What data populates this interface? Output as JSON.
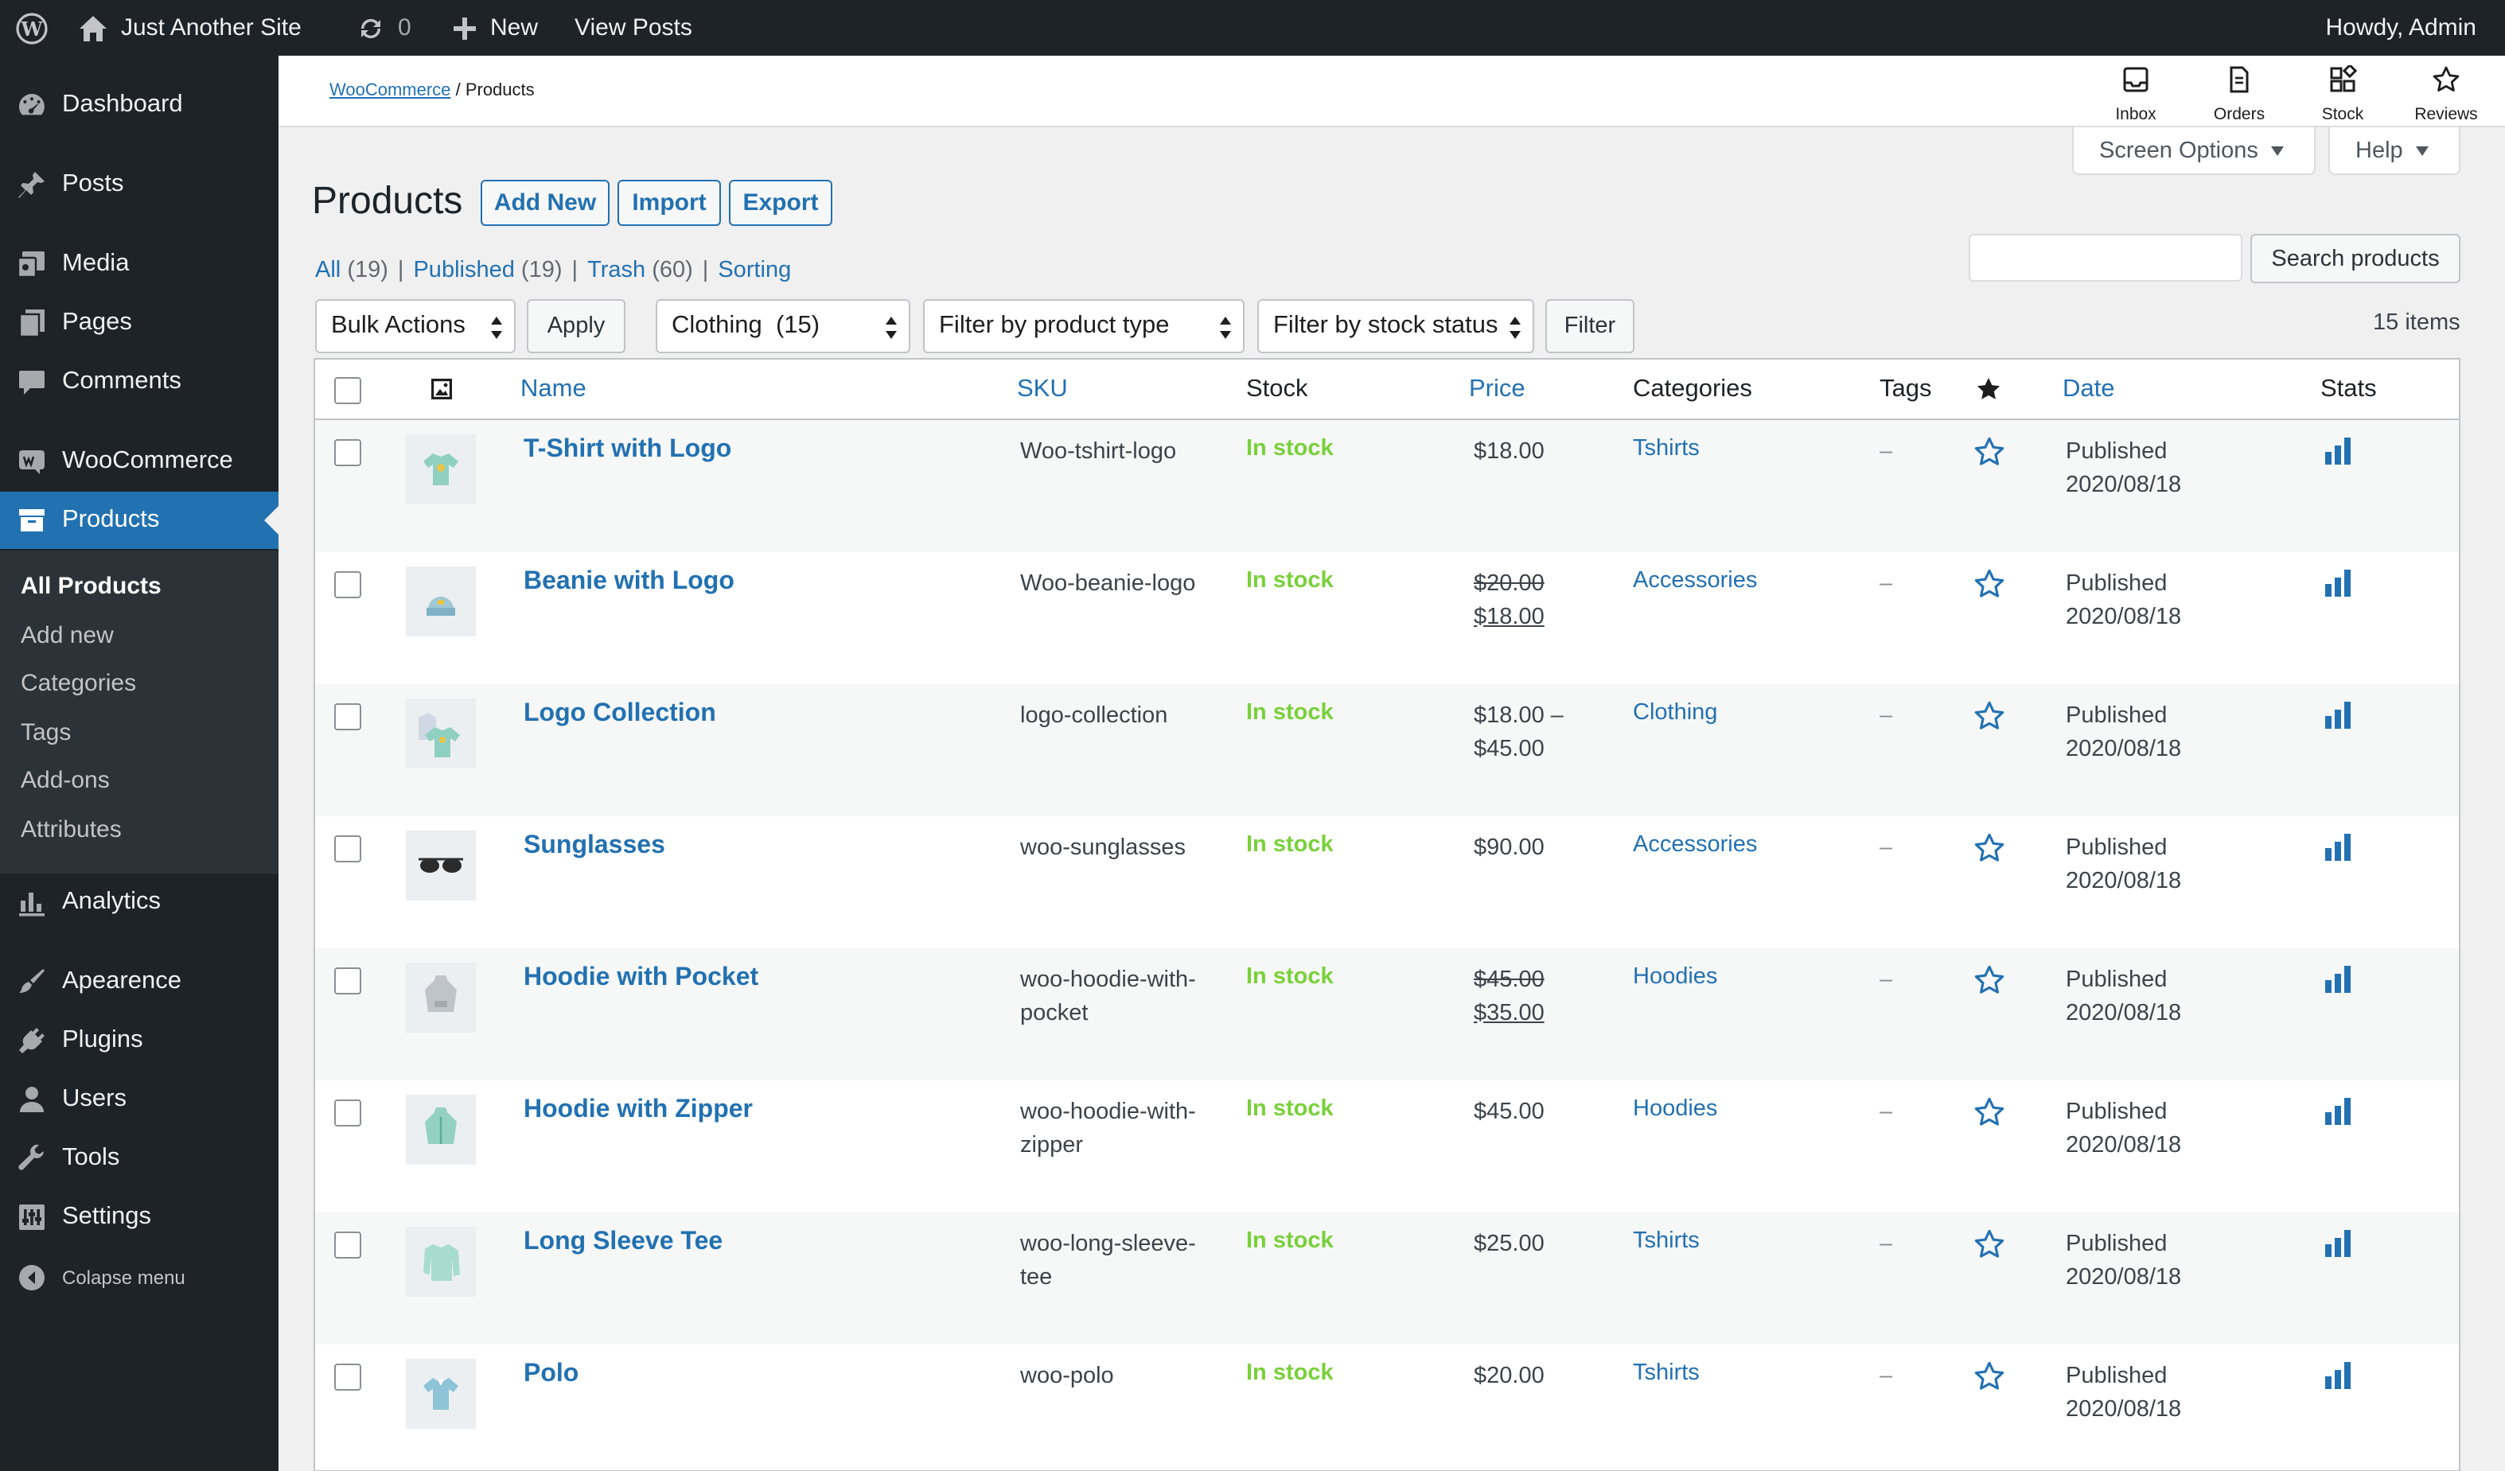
{
  "admin_bar": {
    "site_name": "Just Another Site",
    "updates_count": "0",
    "new_label": "New",
    "view_posts_label": "View Posts",
    "greeting": "Howdy, Admin"
  },
  "sidebar": {
    "items": [
      {
        "label": "Dashboard",
        "icon": "dashboard-icon"
      },
      {
        "label": "Posts",
        "icon": "pin-icon"
      },
      {
        "label": "Media",
        "icon": "media-icon"
      },
      {
        "label": "Pages",
        "icon": "pages-icon"
      },
      {
        "label": "Comments",
        "icon": "comment-icon"
      },
      {
        "label": "WooCommerce",
        "icon": "woocommerce-icon"
      },
      {
        "label": "Products",
        "icon": "archive-icon"
      },
      {
        "label": "Analytics",
        "icon": "bar-chart-icon"
      },
      {
        "label": "Apearence",
        "icon": "brush-icon"
      },
      {
        "label": "Plugins",
        "icon": "plug-icon"
      },
      {
        "label": "Users",
        "icon": "user-icon"
      },
      {
        "label": "Tools",
        "icon": "wrench-icon"
      },
      {
        "label": "Settings",
        "icon": "settings-icon"
      }
    ],
    "submenu": [
      "All Products",
      "Add new",
      "Categories",
      "Tags",
      "Add-ons",
      "Attributes"
    ],
    "collapse_label": "Colapse menu"
  },
  "header": {
    "breadcrumb_link": "WooCommerce",
    "breadcrumb_sep": "/",
    "breadcrumb_current": "Products",
    "buttons": [
      {
        "label": "Inbox",
        "icon": "inbox-icon"
      },
      {
        "label": "Orders",
        "icon": "orders-icon"
      },
      {
        "label": "Stock",
        "icon": "stock-icon"
      },
      {
        "label": "Reviews",
        "icon": "star-outline-icon"
      }
    ],
    "screen_options": "Screen Options",
    "help": "Help"
  },
  "page": {
    "title": "Products",
    "add_new": "Add New",
    "import": "Import",
    "export": "Export",
    "views": [
      {
        "label": "All",
        "count": "(19)"
      },
      {
        "label": "Published",
        "count": "(19)"
      },
      {
        "label": "Trash",
        "count": "(60)"
      },
      {
        "label": "Sorting",
        "count": ""
      }
    ],
    "search_button": "Search products",
    "search_value": "",
    "bulk_actions": "Bulk Actions",
    "apply": "Apply",
    "category_filter": "Clothing  (15)",
    "product_type_filter": "Filter by product type",
    "stock_status_filter": "Filter by stock status",
    "filter": "Filter",
    "items_count": "15 items"
  },
  "table": {
    "columns": {
      "name": "Name",
      "sku": "SKU",
      "stock": "Stock",
      "price": "Price",
      "categories": "Categories",
      "tags": "Tags",
      "date": "Date",
      "stats": "Stats"
    },
    "rows": [
      {
        "name": "T-Shirt with Logo",
        "sku1": "Woo-tshirt-logo",
        "sku2": "",
        "stock": "In stock",
        "price_old": "",
        "price": "$18.00",
        "price2": "",
        "category": "Tshirts",
        "tags": "–",
        "status": "Published",
        "date": "2020/08/18",
        "thumb": "tshirt"
      },
      {
        "name": "Beanie with Logo",
        "sku1": "Woo-beanie-logo",
        "sku2": "",
        "stock": "In stock",
        "price_old": "$20.00",
        "price": "$18.00",
        "price2": "",
        "category": "Accessories",
        "tags": "–",
        "status": "Published",
        "date": "2020/08/18",
        "thumb": "beanie"
      },
      {
        "name": "Logo Collection",
        "sku1": "logo-collection",
        "sku2": "",
        "stock": "In stock",
        "price_old": "",
        "price": "$18.00 –",
        "price2": "$45.00",
        "category": "Clothing",
        "tags": "–",
        "status": "Published",
        "date": "2020/08/18",
        "thumb": "collection"
      },
      {
        "name": "Sunglasses",
        "sku1": "woo-sunglasses",
        "sku2": "",
        "stock": "In stock",
        "price_old": "",
        "price": "$90.00",
        "price2": "",
        "category": "Accessories",
        "tags": "–",
        "status": "Published",
        "date": "2020/08/18",
        "thumb": "sunglasses"
      },
      {
        "name": "Hoodie with Pocket",
        "sku1": "woo-hoodie-with-",
        "sku2": "pocket",
        "stock": "In stock",
        "price_old": "$45.00",
        "price": "$35.00",
        "price2": "",
        "category": "Hoodies",
        "tags": "–",
        "status": "Published",
        "date": "2020/08/18",
        "thumb": "hoodie-grey"
      },
      {
        "name": "Hoodie with Zipper",
        "sku1": "woo-hoodie-with-",
        "sku2": "zipper",
        "stock": "In stock",
        "price_old": "",
        "price": "$45.00",
        "price2": "",
        "category": "Hoodies",
        "tags": "–",
        "status": "Published",
        "date": "2020/08/18",
        "thumb": "hoodie-green"
      },
      {
        "name": "Long Sleeve Tee",
        "sku1": "woo-long-sleeve-",
        "sku2": "tee",
        "stock": "In stock",
        "price_old": "",
        "price": "$25.00",
        "price2": "",
        "category": "Tshirts",
        "tags": "–",
        "status": "Published",
        "date": "2020/08/18",
        "thumb": "longsleeve"
      },
      {
        "name": "Polo",
        "sku1": "woo-polo",
        "sku2": "",
        "stock": "In stock",
        "price_old": "",
        "price": "$20.00",
        "price2": "",
        "category": "Tshirts",
        "tags": "–",
        "status": "Published",
        "date": "2020/08/18",
        "thumb": "polo"
      }
    ]
  },
  "colors": {
    "admin_dark": "#1d2327",
    "accent": "#2271b1",
    "in_stock": "#7ad03a",
    "background": "#f0f0f1"
  }
}
